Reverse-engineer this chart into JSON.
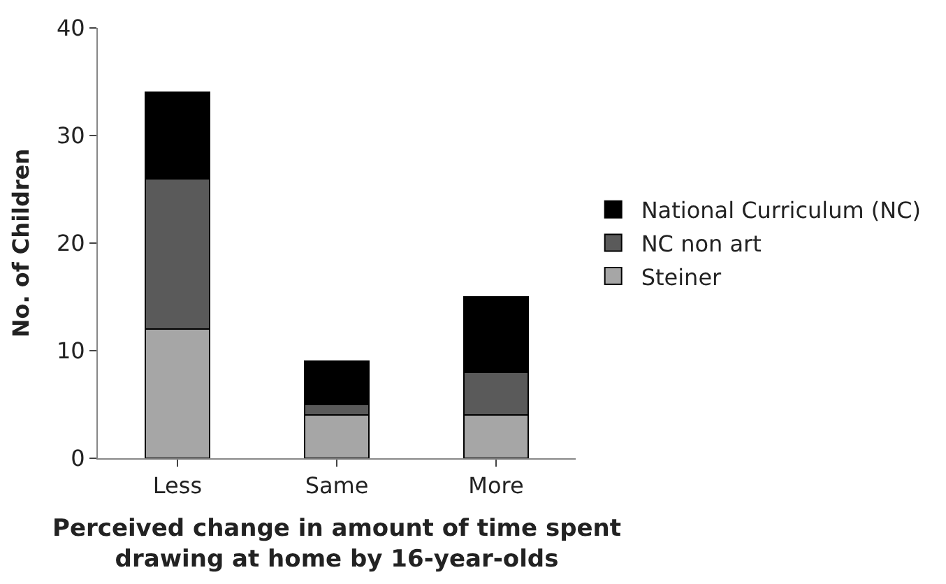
{
  "chart_data": {
    "type": "bar",
    "stacked": true,
    "xlabel": "Perceived change in amount of time spent\ndrawing at home by 16-year-olds",
    "ylabel": "No. of Children",
    "categories": [
      "Less",
      "Same",
      "More"
    ],
    "series": [
      {
        "name": "Steiner",
        "color": "#a6a6a6",
        "values": [
          12,
          4,
          4
        ]
      },
      {
        "name": "NC non art",
        "color": "#5a5a5a",
        "values": [
          14,
          1,
          4
        ]
      },
      {
        "name": "National Curriculum (NC)",
        "color": "#000000",
        "values": [
          8,
          4,
          7
        ]
      }
    ],
    "ylim": [
      0,
      40
    ],
    "yticks": [
      0,
      10,
      20,
      30,
      40
    ],
    "legend": "right"
  }
}
